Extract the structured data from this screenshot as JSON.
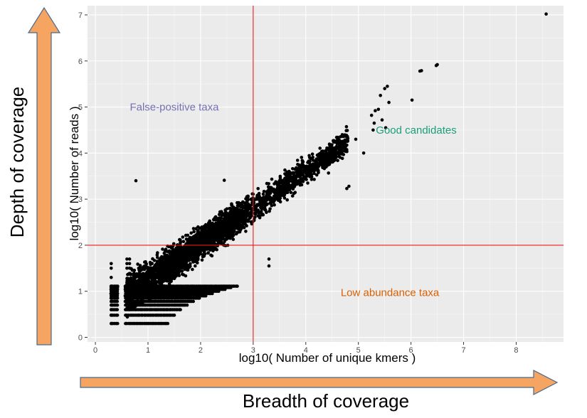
{
  "chart_data": {
    "type": "scatter",
    "title": "",
    "xlabel": "log10( Number of unique kmers )",
    "ylabel": "log10( Number of reads )",
    "xlim": [
      -0.15,
      8.9
    ],
    "ylim": [
      -0.1,
      7.2
    ],
    "x_ticks": [
      "0",
      "1",
      "2",
      "3",
      "4",
      "5",
      "6",
      "7",
      "8"
    ],
    "y_ticks": [
      "0",
      "1",
      "2",
      "3",
      "4",
      "5",
      "6",
      "7"
    ],
    "grid": true,
    "background": "#ebebeb",
    "threshold_lines": {
      "x": 3,
      "y": 2,
      "color": "#e8191b"
    },
    "annotations": [
      {
        "text": "False-positive taxa",
        "x": 1.5,
        "y": 5.0,
        "color": "#7570b3"
      },
      {
        "text": "Good candidates",
        "x": 6.1,
        "y": 4.5,
        "color": "#1b9e77"
      },
      {
        "text": "Low abundance taxa",
        "x": 5.6,
        "y": 0.97,
        "color": "#d95f02"
      }
    ],
    "outliers": [
      {
        "x": 8.57,
        "y": 7.02
      },
      {
        "x": 6.5,
        "y": 5.92
      },
      {
        "x": 6.48,
        "y": 5.9
      },
      {
        "x": 6.2,
        "y": 5.79
      },
      {
        "x": 6.17,
        "y": 5.78
      },
      {
        "x": 6.02,
        "y": 5.15
      },
      {
        "x": 5.55,
        "y": 5.45
      },
      {
        "x": 5.5,
        "y": 5.4
      },
      {
        "x": 5.42,
        "y": 5.25
      },
      {
        "x": 5.58,
        "y": 5.1
      },
      {
        "x": 5.38,
        "y": 4.95
      },
      {
        "x": 5.32,
        "y": 4.92
      },
      {
        "x": 5.25,
        "y": 4.82
      },
      {
        "x": 5.45,
        "y": 4.72
      },
      {
        "x": 5.3,
        "y": 4.65
      },
      {
        "x": 5.52,
        "y": 4.55
      },
      {
        "x": 5.28,
        "y": 4.5
      },
      {
        "x": 0.77,
        "y": 3.4
      },
      {
        "x": 2.45,
        "y": 3.41
      },
      {
        "x": 4.82,
        "y": 3.28
      },
      {
        "x": 4.78,
        "y": 3.23
      },
      {
        "x": 5.1,
        "y": 4.0
      },
      {
        "x": 4.95,
        "y": 4.3
      },
      {
        "x": 3.3,
        "y": 1.7
      },
      {
        "x": 3.3,
        "y": 1.55
      }
    ],
    "scale_x": {
      "min": -0.15,
      "max": 8.9
    },
    "dense_cloud": {
      "description": "several thousand taxa along a diagonal band from (0.3, 0.3) to about (5, 4.5), with integer-count rows stacked near x 0.3-2.5, y 0.3-1.8",
      "trend": {
        "x_start": 0.3,
        "x_end": 5.0,
        "y_start": 0.7,
        "y_end": 4.4
      },
      "rows_y": [
        0.3,
        0.48,
        0.6,
        0.7,
        0.78,
        0.85,
        0.9,
        0.95,
        1.0,
        1.04,
        1.08,
        1.11
      ],
      "low_floor": [
        1.3,
        1.5,
        1.6,
        1.7
      ]
    }
  },
  "outer": {
    "y_label": "Depth of coverage",
    "x_label": "Breadth of coverage",
    "arrow_fill": "#f5a462",
    "arrow_stroke": "#4a6a8a"
  }
}
